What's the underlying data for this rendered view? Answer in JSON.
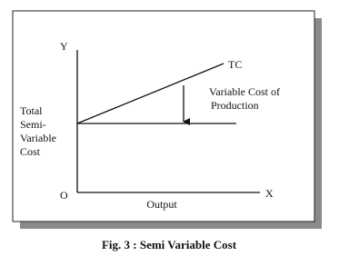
{
  "diagram": {
    "y_axis_label": "Y",
    "x_axis_label": "X",
    "origin_label": "O",
    "x_axis_title": "Output",
    "total_curve_label": "TC",
    "variable_cost_label": [
      "Variable Cost of",
      "Production"
    ],
    "fixed_line_label": [
      "Total",
      "Semi-",
      "Variable",
      "Cost"
    ]
  },
  "caption": "Fig. 3 : Semi Variable Cost"
}
